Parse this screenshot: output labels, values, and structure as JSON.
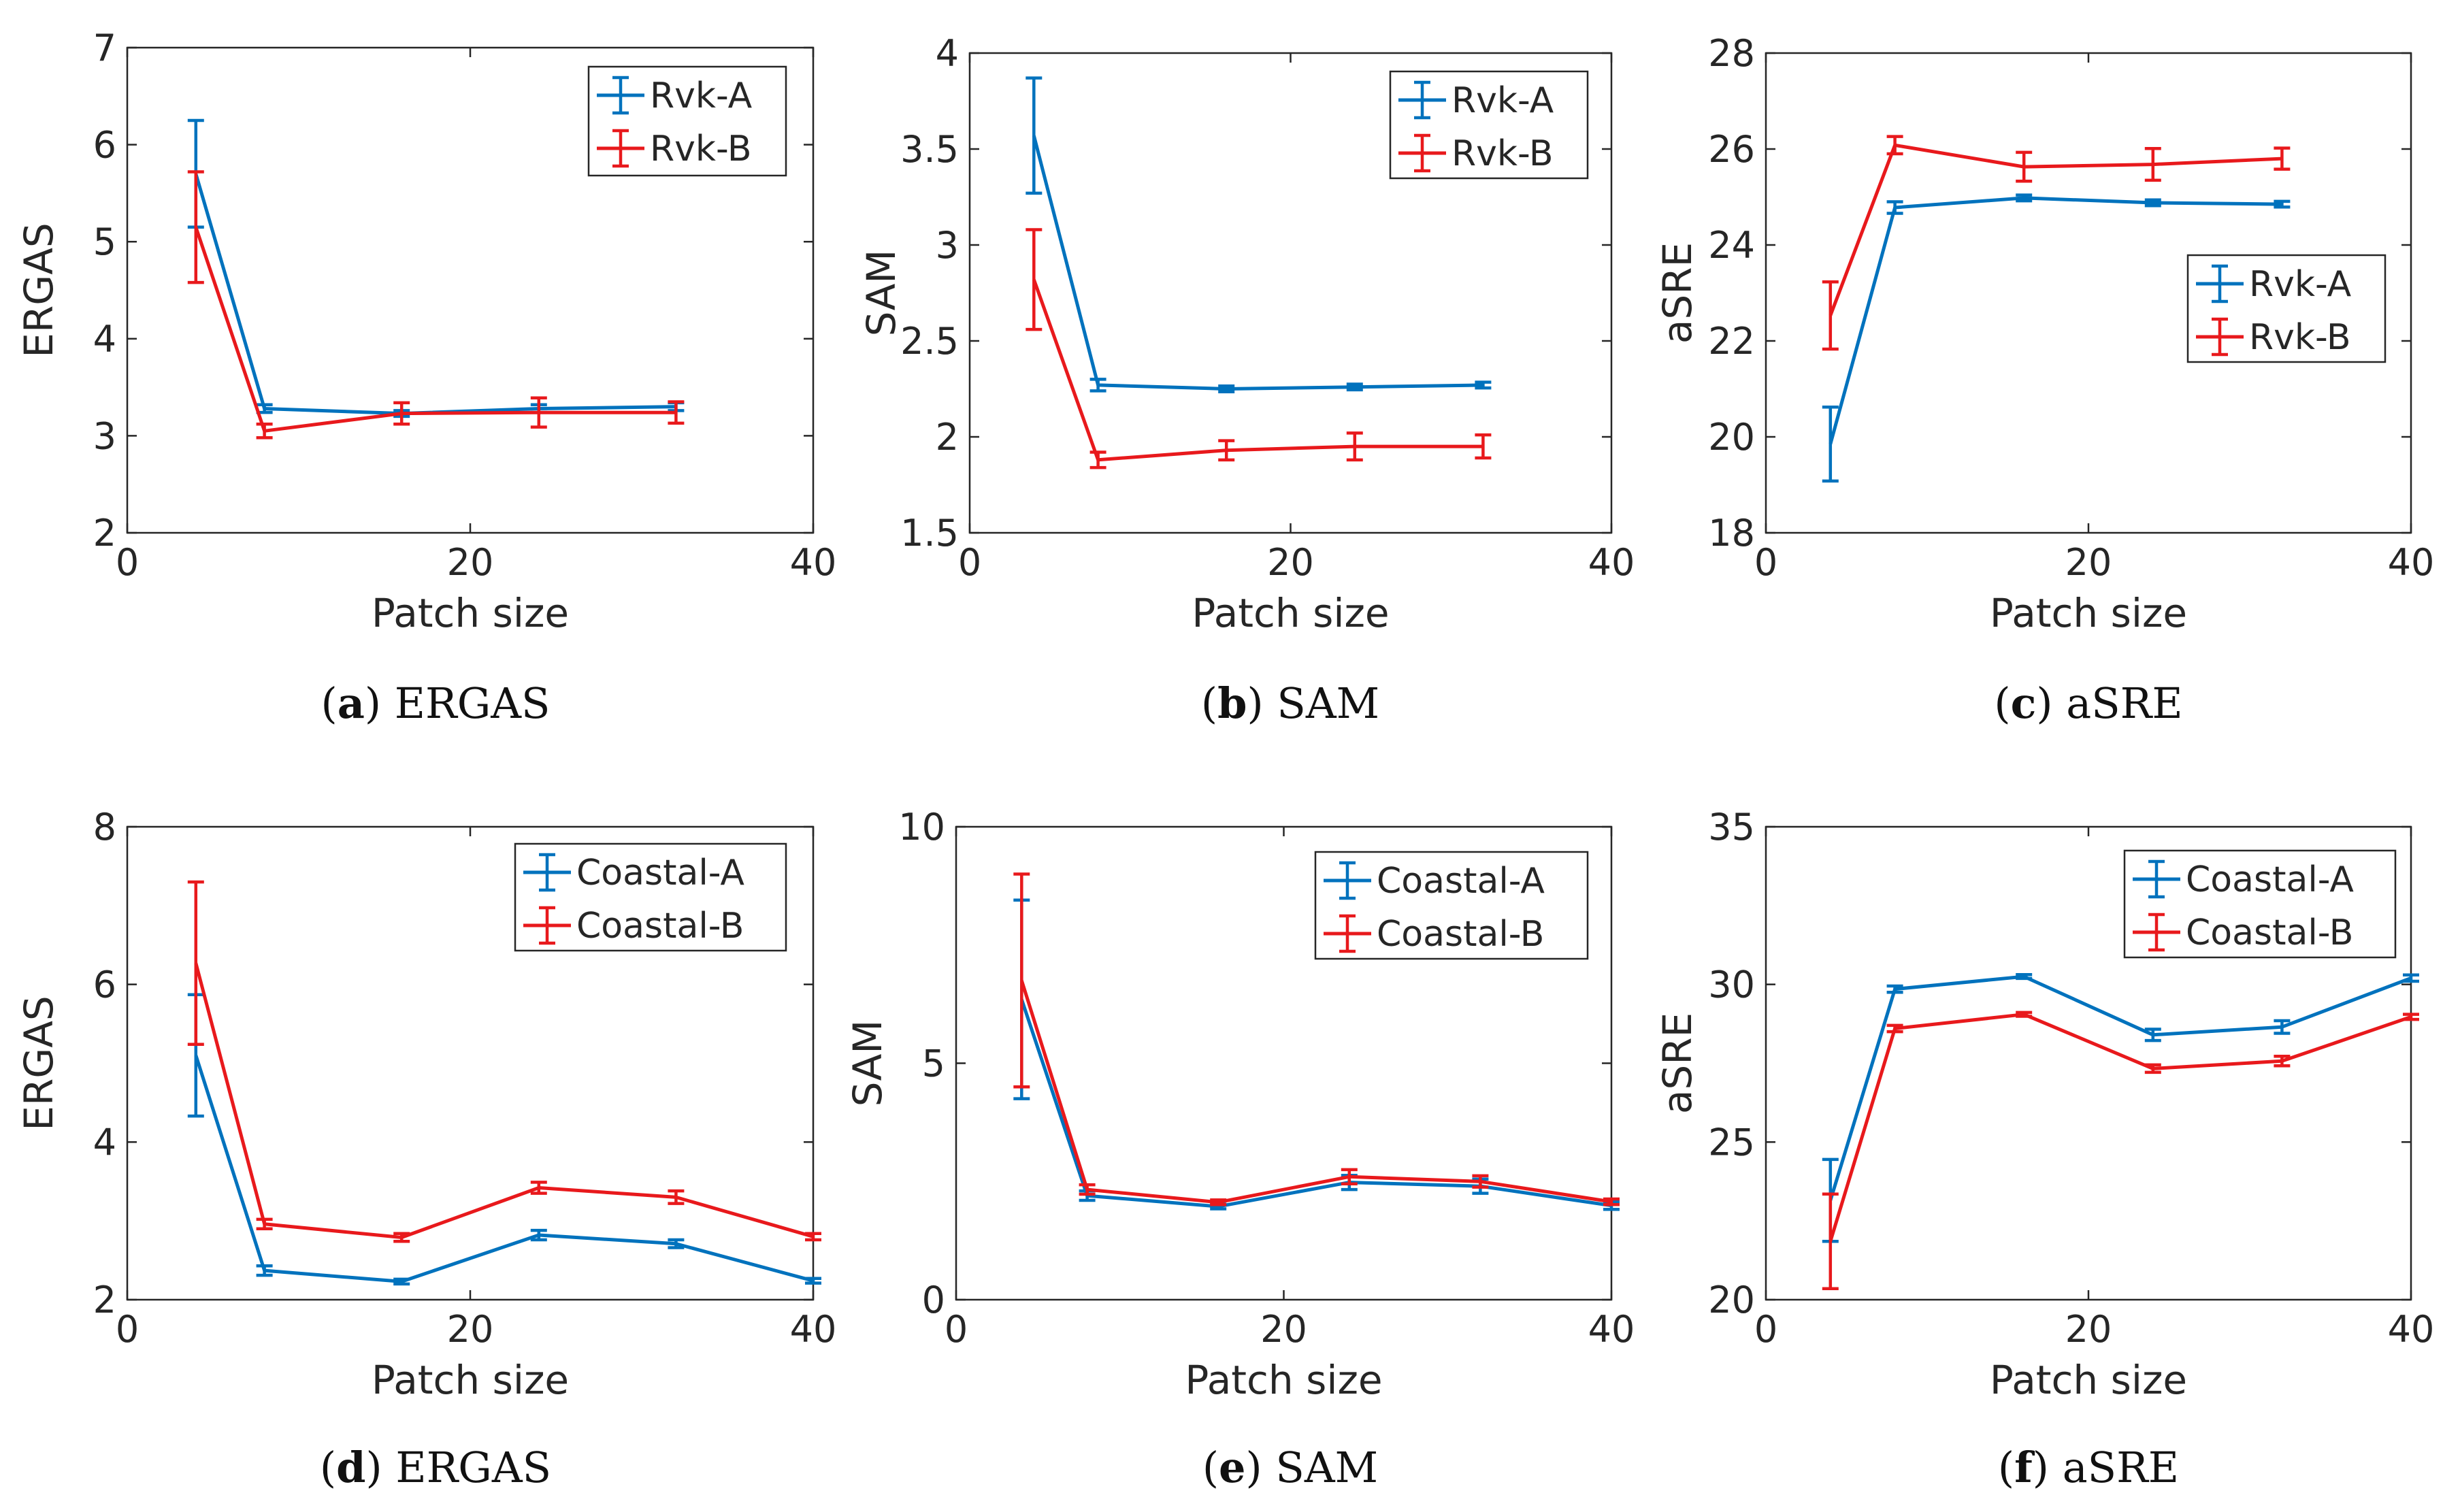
{
  "colors": {
    "series_a": "#0072BD",
    "series_b": "#E8191C"
  },
  "chart_data": [
    {
      "type": "line",
      "caption_letter": "a",
      "caption_text": " ERGAS",
      "title": "",
      "xlabel": "Patch size",
      "ylabel": "ERGAS",
      "xlim": [
        0,
        40
      ],
      "ylim": [
        2,
        7
      ],
      "xticks": [
        "0",
        "20",
        "40"
      ],
      "yticks": [
        "2",
        "3",
        "4",
        "5",
        "6",
        "7"
      ],
      "legend_position": "top-right",
      "series": [
        {
          "name": "Rvk-A",
          "x": [
            4,
            8,
            16,
            24,
            32
          ],
          "y": [
            5.7,
            3.28,
            3.23,
            3.28,
            3.3
          ],
          "err": [
            0.55,
            0.04,
            0.03,
            0.04,
            0.04
          ]
        },
        {
          "name": "Rvk-B",
          "x": [
            4,
            8,
            16,
            24,
            32
          ],
          "y": [
            5.15,
            3.05,
            3.23,
            3.24,
            3.24
          ],
          "err": [
            0.57,
            0.07,
            0.11,
            0.15,
            0.11
          ]
        }
      ]
    },
    {
      "type": "line",
      "caption_letter": "b",
      "caption_text": " SAM",
      "title": "",
      "xlabel": "Patch size",
      "ylabel": "SAM",
      "xlim": [
        0,
        40
      ],
      "ylim": [
        1.5,
        4
      ],
      "xticks": [
        "0",
        "20",
        "40"
      ],
      "yticks": [
        "1.5",
        "2",
        "2.5",
        "3",
        "3.5",
        "4"
      ],
      "legend_position": "top-right",
      "series": [
        {
          "name": "Rvk-A",
          "x": [
            4,
            8,
            16,
            24,
            32
          ],
          "y": [
            3.57,
            2.27,
            2.25,
            2.26,
            2.27
          ],
          "err": [
            0.3,
            0.03,
            0.015,
            0.015,
            0.015
          ]
        },
        {
          "name": "Rvk-B",
          "x": [
            4,
            8,
            16,
            24,
            32
          ],
          "y": [
            2.82,
            1.88,
            1.93,
            1.95,
            1.95
          ],
          "err": [
            0.26,
            0.04,
            0.05,
            0.07,
            0.06
          ]
        }
      ]
    },
    {
      "type": "line",
      "caption_letter": "c",
      "caption_text": " aSRE",
      "title": "",
      "xlabel": "Patch size",
      "ylabel": "aSRE",
      "xlim": [
        0,
        40
      ],
      "ylim": [
        18,
        28
      ],
      "xticks": [
        "0",
        "20",
        "40"
      ],
      "yticks": [
        "18",
        "20",
        "22",
        "24",
        "26",
        "28"
      ],
      "legend_position": "middle-right",
      "series": [
        {
          "name": "Rvk-A",
          "x": [
            4,
            8,
            16,
            24,
            32
          ],
          "y": [
            19.85,
            24.78,
            24.98,
            24.88,
            24.85
          ],
          "err": [
            0.77,
            0.12,
            0.06,
            0.06,
            0.06
          ]
        },
        {
          "name": "Rvk-B",
          "x": [
            4,
            8,
            16,
            24,
            32
          ],
          "y": [
            22.53,
            26.08,
            25.63,
            25.68,
            25.8
          ],
          "err": [
            0.7,
            0.18,
            0.3,
            0.33,
            0.22
          ]
        }
      ]
    },
    {
      "type": "line",
      "caption_letter": "d",
      "caption_text": " ERGAS",
      "title": "",
      "xlabel": "Patch size",
      "ylabel": "ERGAS",
      "xlim": [
        0,
        40
      ],
      "ylim": [
        2,
        8
      ],
      "xticks": [
        "0",
        "20",
        "40"
      ],
      "yticks": [
        "2",
        "4",
        "6",
        "8"
      ],
      "legend_position": "top-right",
      "series": [
        {
          "name": "Coastal-A",
          "x": [
            4,
            8,
            16,
            24,
            32,
            40
          ],
          "y": [
            5.1,
            2.37,
            2.23,
            2.82,
            2.71,
            2.24
          ],
          "err": [
            0.77,
            0.06,
            0.03,
            0.06,
            0.05,
            0.03
          ]
        },
        {
          "name": "Coastal-B",
          "x": [
            4,
            8,
            16,
            24,
            32,
            40
          ],
          "y": [
            6.27,
            2.96,
            2.79,
            3.42,
            3.3,
            2.8
          ],
          "err": [
            1.03,
            0.06,
            0.05,
            0.07,
            0.08,
            0.04
          ]
        }
      ]
    },
    {
      "type": "line",
      "caption_letter": "e",
      "caption_text": " SAM",
      "title": "",
      "xlabel": "Patch size",
      "ylabel": "SAM",
      "xlim": [
        0,
        40
      ],
      "ylim": [
        0,
        10
      ],
      "xticks": [
        "0",
        "20",
        "40"
      ],
      "yticks": [
        "0",
        "5",
        "10"
      ],
      "legend_position": "top-right",
      "series": [
        {
          "name": "Coastal-A",
          "x": [
            4,
            8,
            16,
            24,
            32,
            40
          ],
          "y": [
            6.35,
            2.2,
            1.97,
            2.48,
            2.4,
            1.99
          ],
          "err": [
            2.1,
            0.1,
            0.05,
            0.15,
            0.15,
            0.08
          ]
        },
        {
          "name": "Coastal-B",
          "x": [
            4,
            8,
            16,
            24,
            32,
            40
          ],
          "y": [
            6.75,
            2.33,
            2.06,
            2.6,
            2.5,
            2.07
          ],
          "err": [
            2.25,
            0.1,
            0.05,
            0.15,
            0.12,
            0.06
          ]
        }
      ]
    },
    {
      "type": "line",
      "caption_letter": "f",
      "caption_text": " aSRE",
      "title": "",
      "xlabel": "Patch size",
      "ylabel": "aSRE",
      "xlim": [
        0,
        40
      ],
      "ylim": [
        20,
        35
      ],
      "xticks": [
        "0",
        "20",
        "40"
      ],
      "yticks": [
        "20",
        "25",
        "30",
        "35"
      ],
      "legend_position": "top-right",
      "series": [
        {
          "name": "Coastal-A",
          "x": [
            4,
            8,
            16,
            24,
            32,
            40
          ],
          "y": [
            23.15,
            29.85,
            30.25,
            28.4,
            28.65,
            30.2
          ],
          "err": [
            1.3,
            0.1,
            0.06,
            0.18,
            0.2,
            0.1
          ]
        },
        {
          "name": "Coastal-B",
          "x": [
            4,
            8,
            16,
            24,
            32,
            40
          ],
          "y": [
            21.85,
            28.6,
            29.05,
            27.33,
            27.57,
            28.97
          ],
          "err": [
            1.5,
            0.1,
            0.06,
            0.12,
            0.15,
            0.08
          ]
        }
      ]
    }
  ]
}
